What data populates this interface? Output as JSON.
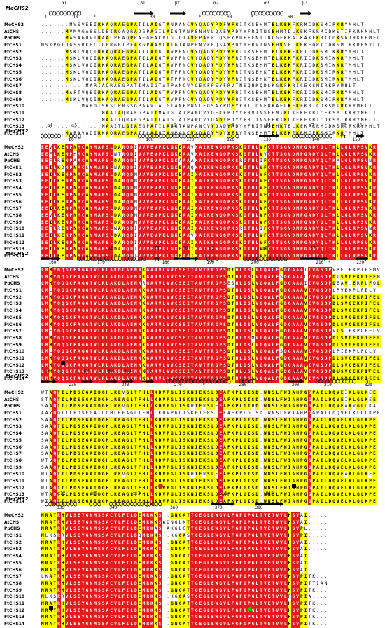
{
  "reference_label": "MeCHS2",
  "sequence_names": [
    "MeCHS2",
    "AtCHS",
    "PpCHS",
    "FtCHS1",
    "FtCHS2",
    "FtCHS3",
    "FtCHS4",
    "FtCHS5",
    "FtCHS6",
    "FtCHS7",
    "FtCHS8",
    "FtCHS9",
    "FtCHS10",
    "FtCHS11",
    "FtCHS12",
    "FtCHS13",
    "FtCHS14"
  ],
  "colors": {
    "conserved": "#e41a1c",
    "similar": "#ffff00",
    "text": "#000000",
    "circle_marker": "#e41a1c",
    "square_marker": "#000000",
    "triangle_marker": "#00cc00"
  },
  "blocks": [
    {
      "ticks": [
        {
          "pos": 1,
          "label": "1"
        },
        {
          "pos": 8,
          "label": "10"
        },
        {
          "pos": 27,
          "label": "30"
        },
        {
          "pos": 46,
          "label": "50"
        },
        {
          "pos": 61,
          "label": "60"
        }
      ],
      "star_positions": [
        13,
        39,
        52
      ],
      "structure": [
        {
          "type": "helix",
          "label": "α1",
          "start": 2,
          "end": 10
        },
        {
          "type": "strand",
          "label": "β1",
          "start": 23,
          "end": 28
        },
        {
          "type": "strand",
          "label": "β2",
          "start": 32,
          "end": 36
        },
        {
          "type": "helix",
          "label": "α2",
          "start": 40,
          "end": 47
        },
        {
          "type": "helix",
          "label": "α3",
          "start": 52,
          "end": 60
        },
        {
          "type": "strand",
          "label": "β3",
          "start": 64,
          "end": 67
        }
      ],
      "rows": [
        ".......MVSVEEIRKAQRAEGPATILAIGTANPANCVYQADYPDFYFRITKSEHMTELKEKFKRMCDKSMIRKRYMHLT",
        "......MVMAGASSLDEIRQAQRADGPAGILAIGTANPENHVLQAEYPDYYFRITNSEHMTDLKEKFKRMCDKSTIRKRHMHLT",
        "......MASAGDVTRAALPRAQPRAEGPACVLGIGTAVPPAEFLQSEYPDFFFNITNCGEKEALKAKFKRICDKSGIRKRHMFLT",
        "MSKPQTDGSSRKHCIGPRGRTPEAKGPAAVLAIGTANPPNVFEQSAYPDYYFRVTNSEHKVELKKKFQRICDKSMIRKRHMYLT",
        "......MSKLVQQIRKAQRAEGPATILAIGTAVPPNCVYQADYPDYYFRITKSEHMTELKEKFKRICDKSMIKKRYMHLT",
        "......MSKLVQQIRKAQRAEGPATILAIGTAVPPNCVYQADYPDYYFRITKSEHMTELKEKFKRICDKSMIKKRYMHLT",
        "......MSKLVQQIRKAQRAEGPATILAIGTAVPPNCVYQADYPDYYFRITKSEHMTELKEKFKRICDKSMIKKRYMHLT",
        "......MSKLVQQIRKAQRAEGPATILAIGTATPPNCVYQADYPDYYFRITNSEHKTELKEKFKRICDKSMIRKRYMHLT",
        "......MSKLVQQIRKAQRAEGPATILAIGTATPPNCVYQADYPDYYFRITNSEHKTELKEKFKRICDKSMIRKRYMHLT",
        "...........MARIAQRAEGPATIMAIGTATPANCVYQEKFPEYFRVTNSQHKQDLKGKFKRICEKSMIRKRYMHLT",
        "......MAPTVQEIRKAQRAEGPATILAIGTAVPPNCVYQADYPDYYFRITKSEHMTELKEKFKRICDKSMIRKRYMHLT",
        "......MSKLVQQIRKAQRAEGPATILAIGTAVPPNCVYQADYPDYYFRITKSEHMTELKEKFKRICDKSMIRKRYMHLT",
        "..........MAROTSKSLPRSSGPAAVLAIGTANPPNVLEQSAYPDFYFRITDNENKAELKEKFKRICDKSMIRKRYMHLT",
        "...............MAAIAQRAEGPATIMAIGTATPANCVYQEKFPDYYFRVTNSEHMTELKEKFKRICEKSMIKKRYMHLT",
        "...............MAAITQRAEGPATILAIGTATPANCVYQADYPDYYFRITNSEHKTELKEKFKRICDKSMIRKRYMHLT",
        "...............MAAITLGEAEGPATILAIGTANPANCVYQADYPDYYFRITNSEHKTELKEKFKRMCDKSMIRKRYMHLT",
        "......MAPAVADIRKAQRAEGPATILAIGTANPANCVYQADYPDYYFRVTNSEHMTELKEKFKRMCEKSMIRKRYMHLT"
      ],
      "markers": []
    },
    {
      "ticks": [
        {
          "pos": 7,
          "label": "80"
        },
        {
          "pos": 26,
          "label": "100"
        },
        {
          "pos": 36,
          "label": "110"
        },
        {
          "pos": 46,
          "label": "120"
        },
        {
          "pos": 55,
          "label": "130"
        },
        {
          "pos": 67,
          "label": "140"
        },
        {
          "pos": 77,
          "label": "150"
        }
      ],
      "star_positions": [
        9,
        31
      ],
      "structure": [
        {
          "type": "helix",
          "label": "α4",
          "start": 0,
          "end": 5
        },
        {
          "type": "helix",
          "label": "α5",
          "start": 7,
          "end": 10
        },
        {
          "type": "helix",
          "label": "α6",
          "start": 24,
          "end": 42
        },
        {
          "type": "helix",
          "label": "η1",
          "start": 46,
          "end": 49
        },
        {
          "type": "strand",
          "label": "β4",
          "start": 54,
          "end": 59
        },
        {
          "type": "helix",
          "label": "α7",
          "start": 62,
          "end": 72
        },
        {
          "type": "turn",
          "label": "TT",
          "start": 74,
          "end": 76
        },
        {
          "type": "strand",
          "label": "β5",
          "start": 78,
          "end": 80
        }
      ],
      "rows": [
        "EEVLKENPNMCAYMAPSLDARQDIVVVEVPKLGKEAAVKAIKEWGQPKSKITHLVFCTTSGVDMPGADYQLTKLLGLRPSVKR",
        "EEFLKENPHMCAYMAPSLNTRQDIVVVEVPKLGKEAAVKAIKEWGQPKSKITHLVVCTTSGVDMPGADYQLTKLLGLRPSVKR",
        "EEFLRENPAMCAYMAPSLDARQDIVVVEVPKLGKAAAAKAIKEWGQPKSRITHLIFCTTSGVDMPGADYQLTKMLGLRPSVNR",
        "EEILKDNPNMCSYMAPSLNARQDIVVVEVPKLGKEAAQKAIKEWGQPKSKITHLVFCTTSGVDMPGADYQLTKLLGLRPSVKR",
        "EEILKENPNMCAYMAPSLDARQDMVVVEVPKLGKEAAIKAIKEWGQPKSKITHLVFCTTSGVDMPGADYQLTKLLGLRPSVKR",
        "EEILKENPNMCAYMAPSLDARQDMVVVEVPKLGKEAAIKAIKEWGQPKSKITHLVFCTTSGVDMPGADYQLTKLLGLRPSVKR",
        "EEILKENPNMCAYMAPSLDARQDMVVVEVPKLGKEAAIKAIKEWGQPKSKITHLVFCTTSGVDMPGADYQLTKLLGLRPSVKR",
        "EEILKENPNMCAYMAPSLDARQDMVVVEVPKLGKEAAIKAIKEWGQPKSKITHLVFCTTSGVDMPGADYQLTKLLGLRPSVKR",
        "EEILKENPNMCAYMAPSLDARQDMVVVEVPKLGKEAAIKAIKEWGQPKSKITHLVFCTTSGVDMPGADYQLTKLLGLRPSVKR",
        "EEILKENPNMCAYMAPSLDARQDMVVVEVPKLGKEAAIKAIKEWGQPKSKITHLVFCTTSGVDMPGADYQLTKLLGLRPSVKR",
        "EEVLKENPNMCAYMAPSLDARQDMVVVEVPKLGKEAAIKAIKEWGQPKSKITHLVFCTTSGVDMPGADYQLTKLLGLRPSVKR",
        "EEILKENPNMCAYMAPSLDARQDMVVVEVPKLGKEAAIKAIKEWGQPKSKITHLVFCTTSGVDMPGADYQLTKLLGLRPSVKR",
        "EEFLRENPNMCAYMAPSLNARQDIVVVEVPKLGKEAAIKAIKEWGQPKSRITHLIFCTTSGVDMPGADYQLTKLLGLRPSVNR",
        "EEILKENPNMCAYMAPSLDARQDIVVVEVPKLGKEAAVKAIKEWGQPKSKITHLVFCTTSGVDMPGADYQLTKLLGLRPSVKR",
        "EEILKENPNMCAYMAPSLDARQDIVVVEVPKLGKEAAIKAIKEWGQPKSKITHLVFCTTSGVDMPGADYQLTKLLGLRPSVKR",
        "EEILKENPNMCAYMAPSLDARQDIVVVEVPKLGKEAAIKAIKEWGQPKSKITHLVFCTTSGVDMPGADYQLTKLLGLRPSVKR",
        "EEILKENPNMCAYMAPSLDARQDIVVVEVPKLGKEAAIKAIKEWGQPKSKITHLVFCTTSGVDMPGADYQLTKLLGLRPSVKR"
      ],
      "markers": []
    },
    {
      "ticks": [
        {
          "pos": 2,
          "label": "160"
        },
        {
          "pos": 14,
          "label": "170"
        },
        {
          "pos": 30,
          "label": "180"
        },
        {
          "pos": 41,
          "label": "190"
        },
        {
          "pos": 52,
          "label": "200"
        },
        {
          "pos": 68,
          "label": "210"
        },
        {
          "pos": 78,
          "label": "220"
        }
      ],
      "star_positions": [
        42,
        71
      ],
      "structure": [
        {
          "type": "strand",
          "label": "",
          "start": 0,
          "end": 5
        },
        {
          "type": "helix",
          "label": "α8",
          "start": 9,
          "end": 26
        },
        {
          "type": "turn",
          "label": "TT",
          "start": 28,
          "end": 30
        },
        {
          "type": "strand",
          "label": "β6",
          "start": 33,
          "end": 39
        },
        {
          "type": "helix",
          "label": "η2",
          "start": 41,
          "end": 44
        },
        {
          "type": "helix",
          "label": "α9",
          "start": 50,
          "end": 61
        },
        {
          "type": "strand",
          "label": "β7",
          "start": 64,
          "end": 71
        },
        {
          "type": "strand",
          "label": "",
          "start": 78,
          "end": 81
        }
      ],
      "rows": [
        "LMMYQQGCFAGGTVLRLAKDLAENNKGARVLVVCSEITAVTFRGPSDTHLDSLVGQALFGDGAAAIIVGSDPVPEIEKPIFEMV",
        "LMMYQQGCFAGGTVLRLAKDLAENNKGARVLVVCSEITAVTFRGPSDTHLDSLVGQALFSDGAAALIVGSDPDTSVGEKPIFEMV",
        "LMMYQQGCFAGGTVLRLAKDLAENNRGARVLVVCSEITAVTFRGPSESHLDSLVGQALFGDGAAAIIVGSDPDEAV.ERPLFQLV",
        "LMLYQQGCFAGGTVLRLAKDLAENNKGARVLVVCSEITAVTFRGPSDTHLDSLVGQALFGDGAAAVIVGSDPLPVEKPLFELV",
        "LMMYQQGCFAGGTVLRLAKDLAENNKGARVLVVCSEITAVTFRGPSDTHLDSLVGQALFGDGAAAVIVGSDPDLSVGEKPIFELV",
        "LMMYQQGCFAGGTVLRLAKDLAENNKGARVLVVCSEITAVTFRGPSDTHLDSLVGQALFGDGAAAVIVGSDPDLSVGEKPIFELV",
        "LMMYQQGCFAGGTVLRLAKDLAENNKGARVLVVCSEITAVTFRGPSDTHLDSLVGQALFGDGAAAVIVGSDPDLSVGEKPIFELV",
        "LMMYQQGCFAGGTVLRLAKDLAENNKGARVLVVCSEITAVTFRGPSDTHLDSLVGQALFGDGAAAVIVGSDPDLSVGEKPIFELV",
        "LMMYQQGCFAGGTVLRLAKDLAENNKGARVLVVCSEITAVTFRGPSDTHLDSLVGQALFGDGAAAVIVGSDPDLSVGEKPIFELV",
        "LMFYQQGCFAGGTVLRLAKDLAENNKGARVLVVCSEITAVTFRGPSDTHLDSLVGQALFGDGAAAVIVGSDPVLSIEKPLFELV",
        "LMMYQQGCFAGGTVLRLAKDLAENNKGARVLVVCSEITAVTFRGPSDTHLDSMVGQALFGDGAAAVIVGSDPDLSVGEKPIFELV",
        "LMMYQQGCFAGGTVLRLAKDLAENNKGARVLVVCSEITAVTFRGPSDTHLDSLVGQALFGDGAAAVIVGSDPDLSVGEKPIFELV",
        "LMLYQQGCFAGGTVLRLAKDLAENNKGARVLVVCSEITAVTFRGPSDTHLDSLVGQALFSDGAAAVIVGSDPLPIEKPLFQLV",
        "LMMYQQGCFAGGTVLRLAKDLAENNKGARVLVVCSEITAVTFRGPSDTHLDSLVGQALFGDGAAAVIVGSDPDLSVGEKPIFELV",
        "LMMYQQGCFAGGTVLRLAKDLAENNKGARVLVVCSEITAVTFRGPSDTHLDSLVGQALFGDGAAAVIVGSDPDLSVGEKPIFELV",
        "LMMYQQGCFAGGTVLRLAKDLAENNKGARVLVVCSEITAVTFRGPSDTHLDSLVGQALFGDGAAAVIVGSDPDLSVGEKPIFELV",
        "LMMYQQGCFAGGTVLRLAKDLAENNKGARVLVVCSEITAVTFRGPSDTHLDSLVGQALFGDGAAAVIVGSDPDLSVGEKPIFELV"
      ],
      "markers": [
        {
          "type": "square",
          "pos": 5
        },
        {
          "type": "circle",
          "pos": 65
        }
      ]
    },
    {
      "ticks": [
        {
          "pos": 7,
          "label": "230"
        },
        {
          "pos": 20,
          "label": "240"
        },
        {
          "pos": 33,
          "label": "270"
        },
        {
          "pos": 49,
          "label": "280"
        },
        {
          "pos": 62,
          "label": "300"
        },
        {
          "pos": 70,
          "label": "310"
        },
        {
          "pos": 80,
          "label": "320"
        }
      ],
      "star_positions": [
        40
      ],
      "structure": [
        {
          "type": "strand",
          "label": "β8",
          "start": 0,
          "end": 4
        },
        {
          "type": "strand",
          "label": "β9",
          "start": 10,
          "end": 13
        },
        {
          "type": "strand",
          "label": "β10",
          "start": 16,
          "end": 19
        },
        {
          "type": "strand",
          "label": "β11",
          "start": 20,
          "end": 23
        },
        {
          "type": "strand",
          "label": "β12",
          "start": 25,
          "end": 28
        },
        {
          "type": "helix",
          "label": "α10",
          "start": 31,
          "end": 47
        },
        {
          "type": "helix",
          "label": "η3",
          "start": 49,
          "end": 53
        },
        {
          "type": "turn",
          "label": "TT",
          "start": 56,
          "end": 58
        },
        {
          "type": "strand",
          "label": "β13",
          "start": 61,
          "end": 65
        },
        {
          "type": "helix",
          "label": "α11",
          "start": 68,
          "end": 78
        },
        {
          "type": "helix",
          "label": "η4",
          "start": 80,
          "end": 82
        }
      ],
      "rows": [
        "WTAQTILPDSEGAIDGHLREVGLTFHLLKDVPGLISKNIEKSLDEAFKPLGISD.WNSLFWIAHPGGPAILDQVEIKLGLKEE",
        "STAQTILPDSEGAIDGHLREAGLTFHLLKDVPGLISKNIEKSLDEAFKPLGISD.WNSLFWIAHPGGPAILDQVEIKLGLKEE",
        "SAAQTILPDSEGAIDGHLREVGLTFHLLKDVPGLISKHIERSLEEAFKPLGIHD.WNSLFWIAHPGGPAILDQVEAKVGLDKA",
        "AAYQQTILPDSEGAIDGHLREAGLTFHLLKDVPGLISKHIERSLEEAFKPLGISD.WNSLFWIAHPGGPAILDQVELKLGLKPE",
        "SAAQTILPDSEGAIDGHLREAGLTFHLLKDVPGLISKNIEKSLDEAFKPLGISD.WNSLFWIAHPGGPAILDQVELKLGLKPE",
        "SAAQTILPDSEGAIDGHLREAGLTFHLLKDVPGLISKNIEKSLDEAFKPLGISD.WNSLFWIAHPGGPAILDQVELKLGLKPE",
        "SAAQTILPDSEGAIDGHLREAGLTFHLLKDVPGLISKNIEKSLDEAFKPLGISD.WNSLFWIAHPGGPAILDQVELKLGLKPE",
        "SAAQTILPDSEGAIDGHLREAGLTFHLLKDVPGLISKNIEKSLDEAFKPLGISD.WNSLFWIAHPGGPAILDQVELKLGLKPE",
        "SAAQTILPDSEGAIDGHLREAGLTFHLLKDVPGLISKNIEKSLDEAFKPLGISD.WNSLFWIAHPGGPAILDQVELKLGLKPE",
        "SAAQTILPDSEGAIDGHLREAGLTFHLLKDVPGLISKNIEKSLDEAFKPLGISD.WNSLFWIAHPGGPAILDQVELKLGLKPE",
        "WTSQTILPDSEGAIDGHLREAGLTFHLLKDVPGLISKNIEKSLDEAFKPLGISD.WNSLFWIAHPGGPAILDQVELKLGLKPE",
        "SAAQTILPDSEGAIDGHLREAGLTFHLLKDVPGLISKNIEKSLDEAFKPLGISD.WNSLFWIAHPGGPAILDQVELKLGLKPE",
        "WTAQTILPDSEGAIDGHLREVGLTFHLLKDVPGLISKHIERSLEEAFKPLGISD.WNSLFWIAHPGGPAILDQVEAKLGLKEE",
        "WTAQTILPDSEGAIDGHLREAGLTFHLLKDVPGLISKNIEKSLDEAFKPLGISD.WNSLFWIAHPGGPAILDQVELKLGLKPE",
        "WTAQTILPDSEGAIDGHLREAGLTFHLLKDVPGLISKNIEKSLDEAFKPLGISD.WNSLFWIAHPGGPAILDQVELKLGLKPE",
        "WTAQTILPDSEGAIDGHLREAGLTFHLLKDVPGLISKNIEKSLDEAFKPLGISD.WNSLFWIAHPGGPAILDQVELKLGLKPE",
        "WTAQTILPDSEGAIDGHLREAGLTFHLLKDVPGLISKNIEKSLDEAFKPLGISD.WNSLFWIAHPGGPAILDQVELKLGLKPE"
      ],
      "markers": [
        {
          "type": "circle",
          "pos": 29
        },
        {
          "type": "square",
          "pos": 62
        }
      ]
    },
    {
      "ticks": [
        {
          "pos": 4,
          "label": "330"
        },
        {
          "pos": 17,
          "label": "340"
        },
        {
          "pos": 32,
          "label": "360"
        },
        {
          "pos": 43,
          "label": "370"
        },
        {
          "pos": 53,
          "label": "380"
        }
      ],
      "star_positions": [
        26
      ],
      "structure": [
        {
          "type": "helix",
          "label": "α12",
          "start": 1,
          "end": 9
        },
        {
          "type": "helix",
          "label": "η5",
          "start": 12,
          "end": 15
        },
        {
          "type": "helix",
          "label": "α13",
          "start": 17,
          "end": 30
        },
        {
          "type": "strand",
          "label": "β14",
          "start": 42,
          "end": 48
        },
        {
          "type": "strand",
          "label": "β15",
          "start": 53,
          "end": 60
        }
      ],
      "rows": [
        "MRATRHVLSEYGNMSSACVLFILDEMRKKS..GNGATTGEGLEWGVLFGFGPGLTVETVVLHSVAI......",
        "MRATRHVLSEYGNMSSACVLFILDEMRKKSAQNGLKTTGEGLEWGVLFGFGPGLTVETVVLHSVAI......",
        "MRATRHVLSEYGNMSSACVLFILDEMRKAS.AKGLGTTGEGLEWGVLFGFGPGLTVETVVLHSVPL......",
        "MLKSRRVLSEYGNMSSACVLFILDQMRKKS..KGGASTGEGLEWGVLFGFGPGLTVETVVLHSVPI......",
        "MRATRHVLSEYGNMSSACVLFILDEMRKKS..GNGATTGEGLEWGVLFGFGPGLTVETVVLHSVAI......",
        "MRATRHVLSEYGNMSSACVLFILDEMRKKS..GNGATTGEGLEWGVLFGFGPGLTVETVVLHSVAI......",
        "MRATRHVLSEYGNMSSACVLFILDEMRKKS..GNGATTGEGLEWGVLFGFGPGLTVETVVLHSVAI......",
        "MRATRHVLSEYGNMSSACVLFILDEMRKKS..GNGATTGEGLEWGVLFGFGPGLTVETVVLHSVAI......",
        "MRATRHVLSEYGNMSSACVLFILDEMRKKS..GNGATTGEGLEWGVLFGFGPGLTVETVVLHSVAI......",
        "LKATRHVLSEYGNMSSACVLFILDEMRKKS..GNGATTGEGLEWGVLFGFGPGLTVETVVLHSVPITK....",
        "MRATRHVLSEYGNMSSACVLFILDEMRKKS..GNGATTGEGLEWGVLFGFGPGLTVETVVLHSVPITTIAN.",
        "MRATRHVLSEYGNMSSACVLFILDEMRKKS..GNGATTGEGLEWGVLFGFGPGLTVETVVLHSVPITK....",
        "MLKSRRVLSEYGNMSSACVLFILDEMRKKS..KGGASTGEGLEWGVLFGFGPGLTVETVVLRSVPIA.....",
        "MRATRHVLSEYGNMSSACVLFILDEMRKKS..GNGATTGEGLEWGVLFGFGPGLTVETVVLHSVPITK....",
        "MRATRHVLSEYGNMSSACVLFILDEMRKKS..GNGATTGEGLEWGVLFGFGPGLTVETVVLHSVPITK....",
        "MRATRHVLSEYGNMSSACVLFILDEMRKKS..GNGATTGEGLEWGVLFGFGPGLTVETVVLHSVPITK....",
        "MRATRHVLSEYGNMSSACVLFILDEMRKKS..GNGATTGEGLEWGVLFGFGPGLTVETVVLHSVPITK...."
      ],
      "markers": [
        {
          "type": "square",
          "pos": 2
        },
        {
          "type": "triangle",
          "pos": 51
        }
      ]
    }
  ]
}
